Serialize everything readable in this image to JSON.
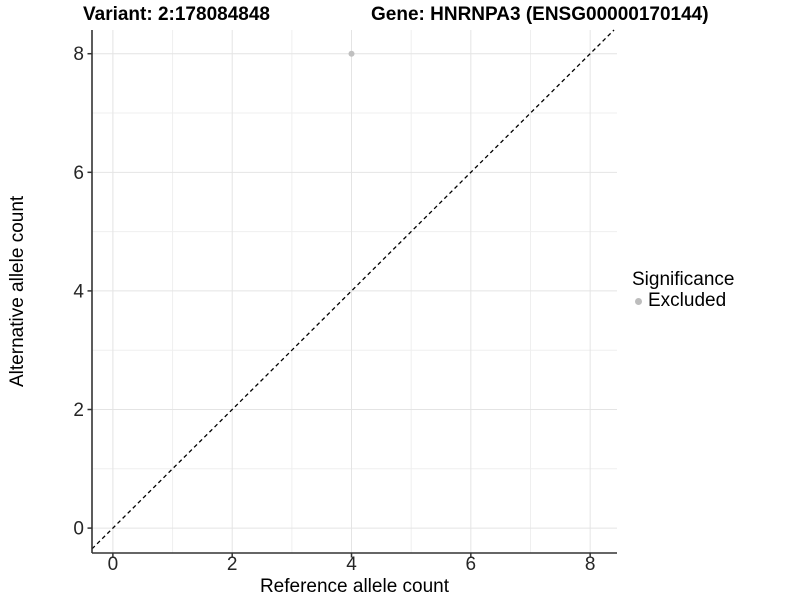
{
  "header": {
    "variant_title": "Variant: 2:178084848",
    "gene_title": "Gene: HNRNPA3 (ENSG00000170144)"
  },
  "chart_data": {
    "type": "scatter",
    "xlabel": "Reference allele count",
    "ylabel": "Alternative allele count",
    "xlim": [
      -0.35,
      8.45
    ],
    "ylim": [
      -0.42,
      8.4
    ],
    "x_ticks": [
      0,
      2,
      4,
      6,
      8
    ],
    "y_ticks": [
      0,
      2,
      4,
      6,
      8
    ],
    "x_minor": [
      1,
      3,
      5,
      7
    ],
    "y_minor": [
      1,
      3,
      5,
      7
    ],
    "grid": true,
    "points": [
      {
        "x": 4,
        "y": 8,
        "significance": "Excluded",
        "color": "#C0C0C0"
      }
    ],
    "reference_line": {
      "type": "identity",
      "equation": "y = x",
      "style": "dashed",
      "color": "#000000"
    },
    "legend": {
      "position": "right",
      "title": "Significance",
      "items": [
        {
          "label": "Excluded",
          "color": "#BDBDBD"
        }
      ]
    },
    "colors": {
      "background": "#FFFFFF",
      "grid_major": "#E4E4E4",
      "grid_minor": "#EFEFEF",
      "axis_line": "#333333",
      "tick_mark": "#333333",
      "tick_label": "#262626",
      "title_text": "#000000"
    }
  }
}
